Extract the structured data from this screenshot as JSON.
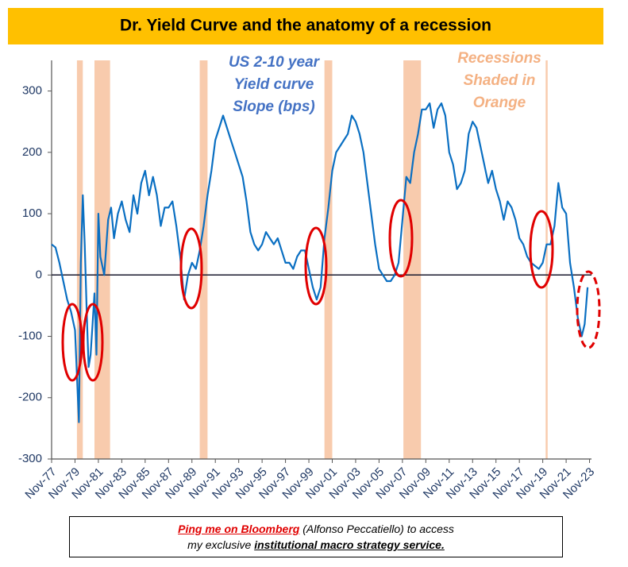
{
  "chart_data": {
    "type": "line",
    "title": "Dr. Yield Curve and the anatomy of a recession",
    "annotation": [
      "US 2-10 year",
      "Yield curve",
      "Slope (bps)"
    ],
    "recession_note": [
      "Recessions",
      "Shaded in",
      "Orange"
    ],
    "color": "#0A6FC2",
    "recession_color": "#F8CBAD",
    "recessions": [
      [
        "1980-01",
        "1980-07"
      ],
      [
        "1981-07",
        "1982-11"
      ],
      [
        "1990-07",
        "1991-03"
      ],
      [
        "2001-03",
        "2001-11"
      ],
      [
        "2007-12",
        "2009-06"
      ],
      [
        "2020-02",
        "2020-04"
      ]
    ],
    "xlim": [
      "1977-11",
      "2024-01"
    ],
    "xticks": [
      {
        "value": "1977-11",
        "label": "Nov-77"
      },
      {
        "value": "1979-11",
        "label": "Nov-79"
      },
      {
        "value": "1981-11",
        "label": "Nov-81"
      },
      {
        "value": "1983-11",
        "label": "Nov-83"
      },
      {
        "value": "1985-11",
        "label": "Nov-85"
      },
      {
        "value": "1987-11",
        "label": "Nov-87"
      },
      {
        "value": "1989-11",
        "label": "Nov-89"
      },
      {
        "value": "1991-11",
        "label": "Nov-91"
      },
      {
        "value": "1993-11",
        "label": "Nov-93"
      },
      {
        "value": "1995-11",
        "label": "Nov-95"
      },
      {
        "value": "1997-11",
        "label": "Nov-97"
      },
      {
        "value": "1999-11",
        "label": "Nov-99"
      },
      {
        "value": "2001-11",
        "label": "Nov-01"
      },
      {
        "value": "2003-11",
        "label": "Nov-03"
      },
      {
        "value": "2005-11",
        "label": "Nov-05"
      },
      {
        "value": "2007-11",
        "label": "Nov-07"
      },
      {
        "value": "2009-11",
        "label": "Nov-09"
      },
      {
        "value": "2011-11",
        "label": "Nov-11"
      },
      {
        "value": "2013-11",
        "label": "Nov-13"
      },
      {
        "value": "2015-11",
        "label": "Nov-15"
      },
      {
        "value": "2017-11",
        "label": "Nov-17"
      },
      {
        "value": "2019-11",
        "label": "Nov-19"
      },
      {
        "value": "2021-11",
        "label": "Nov-21"
      },
      {
        "value": "2023-11",
        "label": "Nov-23"
      }
    ],
    "ylim": [
      -300,
      350
    ],
    "yticks": [
      -300,
      -200,
      -100,
      0,
      100,
      200,
      300
    ],
    "grid": false,
    "x": [
      "1977-11",
      "1978-03",
      "1978-07",
      "1978-11",
      "1979-03",
      "1979-07",
      "1979-11",
      "1980-03",
      "1980-05",
      "1980-07",
      "1980-09",
      "1980-11",
      "1981-01",
      "1981-03",
      "1981-05",
      "1981-07",
      "1981-09",
      "1981-11",
      "1982-01",
      "1982-05",
      "1982-09",
      "1982-12",
      "1983-03",
      "1983-07",
      "1983-11",
      "1984-03",
      "1984-07",
      "1984-11",
      "1985-03",
      "1985-07",
      "1985-11",
      "1986-03",
      "1986-07",
      "1986-11",
      "1987-03",
      "1987-07",
      "1987-11",
      "1988-03",
      "1988-07",
      "1988-11",
      "1989-03",
      "1989-07",
      "1989-11",
      "1990-03",
      "1990-07",
      "1990-11",
      "1991-03",
      "1991-07",
      "1991-11",
      "1992-03",
      "1992-07",
      "1992-11",
      "1993-03",
      "1993-07",
      "1993-11",
      "1994-03",
      "1994-07",
      "1994-11",
      "1995-03",
      "1995-07",
      "1995-11",
      "1996-03",
      "1996-07",
      "1996-11",
      "1997-03",
      "1997-07",
      "1997-11",
      "1998-03",
      "1998-07",
      "1998-11",
      "1999-03",
      "1999-07",
      "1999-11",
      "2000-03",
      "2000-07",
      "2000-11",
      "2001-03",
      "2001-07",
      "2001-11",
      "2002-03",
      "2002-07",
      "2002-11",
      "2003-03",
      "2003-07",
      "2003-11",
      "2004-03",
      "2004-07",
      "2004-11",
      "2005-03",
      "2005-07",
      "2005-11",
      "2006-03",
      "2006-07",
      "2006-11",
      "2007-03",
      "2007-07",
      "2007-11",
      "2008-03",
      "2008-07",
      "2008-11",
      "2009-03",
      "2009-07",
      "2009-11",
      "2010-03",
      "2010-07",
      "2010-11",
      "2011-03",
      "2011-07",
      "2011-11",
      "2012-03",
      "2012-07",
      "2012-11",
      "2013-03",
      "2013-07",
      "2013-11",
      "2014-03",
      "2014-07",
      "2014-11",
      "2015-03",
      "2015-07",
      "2015-11",
      "2016-03",
      "2016-07",
      "2016-11",
      "2017-03",
      "2017-07",
      "2017-11",
      "2018-03",
      "2018-07",
      "2018-11",
      "2019-03",
      "2019-07",
      "2019-11",
      "2020-03",
      "2020-07",
      "2020-11",
      "2021-03",
      "2021-07",
      "2021-11",
      "2022-03",
      "2022-07",
      "2022-11",
      "2023-03",
      "2023-06",
      "2023-09"
    ],
    "values": [
      50,
      45,
      20,
      -10,
      -40,
      -60,
      -90,
      -240,
      20,
      130,
      50,
      -60,
      -150,
      -130,
      -80,
      -30,
      -130,
      100,
      30,
      0,
      90,
      110,
      60,
      100,
      120,
      90,
      70,
      130,
      100,
      150,
      170,
      130,
      160,
      130,
      80,
      110,
      110,
      120,
      80,
      30,
      -40,
      0,
      20,
      10,
      40,
      80,
      130,
      170,
      220,
      240,
      260,
      240,
      220,
      200,
      180,
      160,
      120,
      70,
      50,
      40,
      50,
      70,
      60,
      50,
      60,
      40,
      20,
      20,
      10,
      30,
      40,
      40,
      10,
      -20,
      -40,
      -20,
      60,
      110,
      170,
      200,
      210,
      220,
      230,
      260,
      250,
      230,
      200,
      150,
      100,
      50,
      10,
      0,
      -10,
      -10,
      0,
      20,
      90,
      160,
      150,
      200,
      230,
      270,
      270,
      280,
      240,
      270,
      280,
      260,
      200,
      180,
      140,
      150,
      170,
      230,
      250,
      240,
      210,
      180,
      150,
      170,
      140,
      120,
      90,
      120,
      110,
      90,
      60,
      50,
      30,
      20,
      15,
      10,
      20,
      50,
      50,
      80,
      150,
      110,
      100,
      20,
      -20,
      -70,
      -100,
      -80,
      -20
    ]
  },
  "footer": {
    "link": "Ping me on Bloomberg",
    "line1_rest": "(Alfonso Peccatiello) to access",
    "line2_start": "my exclusive",
    "line2_emph": "institutional macro strategy service."
  }
}
